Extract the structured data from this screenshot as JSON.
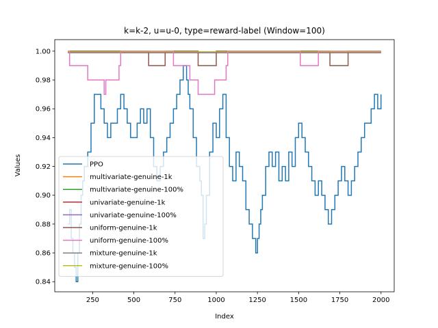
{
  "chart_data": {
    "type": "line",
    "title": "k=k-2, u=u-0, type=reward-label (Window=100)",
    "xlabel": "Index",
    "ylabel": "Values",
    "xlim": [
      20,
      2080
    ],
    "ylim": [
      0.833,
      1.008
    ],
    "xticks": [
      250,
      500,
      750,
      1000,
      1250,
      1500,
      1750,
      2000
    ],
    "yticks": [
      0.84,
      0.86,
      0.88,
      0.9,
      0.92,
      0.94,
      0.96,
      0.98,
      1.0
    ],
    "ytick_labels": [
      "0.84",
      "0.86",
      "0.88",
      "0.90",
      "0.92",
      "0.94",
      "0.96",
      "0.98",
      "1.00"
    ],
    "legend_position": "lower left",
    "series": [
      {
        "name": "PPO",
        "color": "#1f77b4",
        "x": [
          100,
          110,
          120,
          130,
          140,
          150,
          160,
          170,
          180,
          190,
          200,
          210,
          220,
          240,
          260,
          280,
          300,
          320,
          340,
          360,
          380,
          400,
          420,
          440,
          460,
          480,
          500,
          520,
          540,
          560,
          580,
          600,
          620,
          640,
          660,
          680,
          700,
          720,
          740,
          760,
          780,
          800,
          810,
          820,
          830,
          840,
          860,
          880,
          900,
          910,
          920,
          930,
          940,
          960,
          980,
          1000,
          1020,
          1040,
          1060,
          1080,
          1100,
          1120,
          1140,
          1160,
          1180,
          1200,
          1220,
          1240,
          1250,
          1260,
          1270,
          1280,
          1300,
          1320,
          1340,
          1360,
          1380,
          1400,
          1420,
          1440,
          1460,
          1480,
          1500,
          1520,
          1540,
          1560,
          1580,
          1600,
          1620,
          1640,
          1660,
          1680,
          1700,
          1720,
          1740,
          1760,
          1780,
          1800,
          1820,
          1840,
          1860,
          1880,
          1900,
          1920,
          1940,
          1960,
          1980,
          2000
        ],
        "y": [
          0.88,
          0.89,
          0.87,
          0.86,
          0.85,
          0.84,
          0.86,
          0.88,
          0.9,
          0.91,
          0.92,
          0.92,
          0.93,
          0.95,
          0.97,
          0.97,
          0.96,
          0.95,
          0.94,
          0.95,
          0.95,
          0.96,
          0.97,
          0.96,
          0.95,
          0.94,
          0.94,
          0.95,
          0.96,
          0.95,
          0.96,
          0.94,
          0.92,
          0.91,
          0.92,
          0.93,
          0.94,
          0.95,
          0.96,
          0.97,
          0.98,
          0.99,
          0.99,
          0.98,
          0.97,
          0.96,
          0.94,
          0.92,
          0.91,
          0.9,
          0.87,
          0.88,
          0.9,
          0.93,
          0.95,
          0.94,
          0.96,
          0.97,
          0.94,
          0.92,
          0.91,
          0.93,
          0.92,
          0.91,
          0.89,
          0.88,
          0.87,
          0.86,
          0.87,
          0.88,
          0.89,
          0.9,
          0.92,
          0.93,
          0.92,
          0.93,
          0.91,
          0.92,
          0.91,
          0.93,
          0.92,
          0.94,
          0.95,
          0.94,
          0.93,
          0.92,
          0.91,
          0.9,
          0.91,
          0.9,
          0.89,
          0.88,
          0.89,
          0.9,
          0.91,
          0.92,
          0.91,
          0.9,
          0.91,
          0.92,
          0.93,
          0.94,
          0.95,
          0.95,
          0.96,
          0.97,
          0.96,
          0.97
        ]
      },
      {
        "name": "multivariate-genuine-1k",
        "color": "#ff7f0e",
        "x": [
          100,
          2000
        ],
        "y": [
          0.999,
          0.999
        ]
      },
      {
        "name": "multivariate-genuine-100%",
        "color": "#2ca02c",
        "x": [
          100,
          2000
        ],
        "y": [
          0.999,
          0.999
        ]
      },
      {
        "name": "univariate-genuine-1k",
        "color": "#d62728",
        "x": [
          100,
          2000
        ],
        "y": [
          0.999,
          0.999
        ]
      },
      {
        "name": "univariate-genuine-100%",
        "color": "#9467bd",
        "x": [
          100,
          2000
        ],
        "y": [
          0.999,
          0.999
        ]
      },
      {
        "name": "uniform-genuine-1k",
        "color": "#8c564b",
        "x": [
          100,
          580,
          590,
          680,
          690,
          880,
          890,
          990,
          1000,
          1680,
          1690,
          1790,
          1800,
          2000
        ],
        "y": [
          1.0,
          1.0,
          0.99,
          0.99,
          1.0,
          1.0,
          0.99,
          0.99,
          1.0,
          1.0,
          0.99,
          0.99,
          1.0,
          1.0
        ]
      },
      {
        "name": "uniform-genuine-100%",
        "color": "#e377c2",
        "x": [
          100,
          110,
          210,
          220,
          240,
          320,
          330,
          380,
          410,
          420,
          730,
          740,
          830,
          840,
          880,
          890,
          980,
          990,
          1060,
          1070,
          1500,
          1510,
          1610,
          1620,
          2000
        ],
        "y": [
          1.0,
          0.99,
          0.99,
          0.98,
          0.98,
          0.97,
          0.98,
          0.98,
          0.99,
          1.0,
          1.0,
          0.99,
          0.99,
          0.98,
          0.98,
          0.97,
          0.97,
          0.98,
          0.99,
          1.0,
          1.0,
          0.99,
          0.99,
          1.0,
          1.0
        ]
      },
      {
        "name": "mixture-genuine-1k",
        "color": "#7f7f7f",
        "x": [
          100,
          2000
        ],
        "y": [
          0.9995,
          0.9995
        ]
      },
      {
        "name": "mixture-genuine-100%",
        "color": "#bcbd22",
        "x": [
          100,
          2000
        ],
        "y": [
          0.9995,
          0.9995
        ]
      }
    ]
  }
}
